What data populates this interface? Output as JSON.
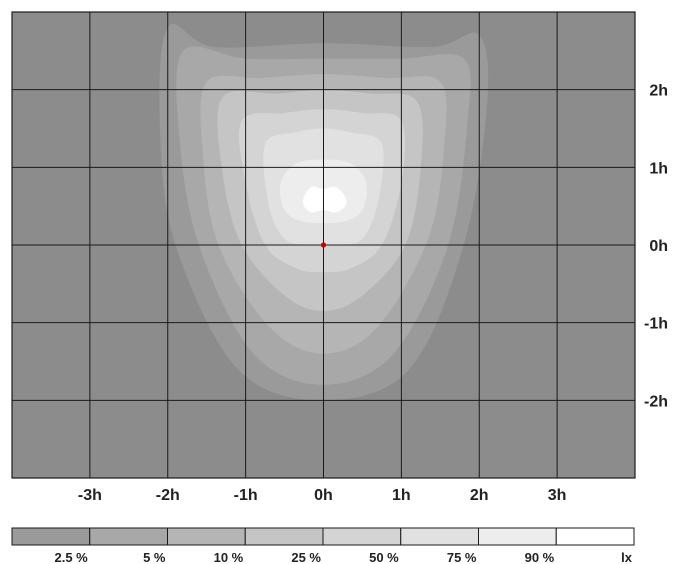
{
  "chart_data": {
    "type": "heatmap",
    "title": "",
    "xlabel": "",
    "ylabel": "",
    "x_ticks": [
      "-3h",
      "-2h",
      "-1h",
      "0h",
      "1h",
      "2h",
      "3h"
    ],
    "y_ticks": [
      "2h",
      "1h",
      "0h",
      "-1h",
      "-2h"
    ],
    "xlim": [
      -4,
      4
    ],
    "ylim": [
      -3,
      3
    ],
    "grid": true,
    "origin_marker": {
      "x": 0,
      "y": 0,
      "color": "#c00000"
    },
    "levels": [
      {
        "label": "2.5 %",
        "color": "#9a9a9a",
        "contour": [
          [
            -2,
            2.8
          ],
          [
            -1.4,
            2.55
          ],
          [
            0,
            2.6
          ],
          [
            1.4,
            2.55
          ],
          [
            2,
            2.7
          ],
          [
            2.1,
            1.8
          ],
          [
            1.8,
            0
          ],
          [
            1.1,
            -1.6
          ],
          [
            0,
            -2
          ],
          [
            -1.1,
            -1.6
          ],
          [
            -1.9,
            0
          ],
          [
            -2.1,
            1.5
          ]
        ]
      },
      {
        "label": "5 %",
        "color": "#a8a8a8",
        "contour": [
          [
            -1.8,
            2.5
          ],
          [
            -1,
            2.4
          ],
          [
            0,
            2.4
          ],
          [
            1,
            2.4
          ],
          [
            1.8,
            2.4
          ],
          [
            1.85,
            1.6
          ],
          [
            1.6,
            0
          ],
          [
            0.9,
            -1.4
          ],
          [
            0,
            -1.8
          ],
          [
            -0.9,
            -1.4
          ],
          [
            -1.6,
            0
          ],
          [
            -1.85,
            1.4
          ]
        ]
      },
      {
        "label": "10 %",
        "color": "#b5b5b5",
        "contour": [
          [
            -1.5,
            2.1
          ],
          [
            -0.8,
            2.15
          ],
          [
            0,
            2.2
          ],
          [
            0.8,
            2.15
          ],
          [
            1.5,
            2.1
          ],
          [
            1.55,
            1.3
          ],
          [
            1.35,
            0.1
          ],
          [
            0.7,
            -1.05
          ],
          [
            0,
            -1.4
          ],
          [
            -0.7,
            -1.05
          ],
          [
            -1.35,
            0
          ],
          [
            -1.55,
            1.2
          ]
        ]
      },
      {
        "label": "25 %",
        "color": "#c5c5c5",
        "contour": [
          [
            -1.3,
            1.9
          ],
          [
            -0.6,
            1.95
          ],
          [
            0,
            2
          ],
          [
            0.6,
            1.95
          ],
          [
            1.2,
            1.85
          ],
          [
            1.25,
            1
          ],
          [
            1.05,
            0
          ],
          [
            0.5,
            -0.65
          ],
          [
            0,
            -0.85
          ],
          [
            -0.5,
            -0.65
          ],
          [
            -1.05,
            0
          ],
          [
            -1.3,
            0.95
          ]
        ]
      },
      {
        "label": "50 %",
        "color": "#d4d4d4",
        "contour": [
          [
            -1.05,
            1.6
          ],
          [
            -0.5,
            1.7
          ],
          [
            0,
            1.75
          ],
          [
            0.5,
            1.7
          ],
          [
            1,
            1.6
          ],
          [
            1,
            0.8
          ],
          [
            0.75,
            0
          ],
          [
            0.35,
            -0.3
          ],
          [
            0,
            -0.35
          ],
          [
            -0.35,
            -0.3
          ],
          [
            -0.75,
            0
          ],
          [
            -1,
            0.8
          ]
        ]
      },
      {
        "label": "75 %",
        "color": "#e1e1e1",
        "contour": [
          [
            -0.75,
            1.3
          ],
          [
            -0.35,
            1.45
          ],
          [
            0,
            1.5
          ],
          [
            0.35,
            1.45
          ],
          [
            0.75,
            1.3
          ],
          [
            0.7,
            0.55
          ],
          [
            0.5,
            0.08
          ],
          [
            0.2,
            0.0
          ],
          [
            -0.2,
            0.0
          ],
          [
            -0.5,
            0.08
          ],
          [
            -0.7,
            0.5
          ]
        ]
      },
      {
        "label": "90 %",
        "color": "#ededed",
        "contour": [
          [
            -0.55,
            0.8
          ],
          [
            -0.35,
            1.05
          ],
          [
            0,
            1.1
          ],
          [
            0.35,
            1.05
          ],
          [
            0.55,
            0.8
          ],
          [
            0.5,
            0.45
          ],
          [
            0.25,
            0.3
          ],
          [
            -0.25,
            0.3
          ],
          [
            -0.5,
            0.45
          ]
        ]
      },
      {
        "label": "lx",
        "color": "#ffffff",
        "contour": [
          [
            -0.25,
            0.62
          ],
          [
            -0.15,
            0.75
          ],
          [
            0,
            0.72
          ],
          [
            0.15,
            0.75
          ],
          [
            0.28,
            0.62
          ],
          [
            0.28,
            0.5
          ],
          [
            0.15,
            0.42
          ],
          [
            0,
            0.45
          ],
          [
            -0.15,
            0.42
          ],
          [
            -0.25,
            0.5
          ]
        ]
      }
    ],
    "background_color": "#8c8c8c",
    "grid_color": "#1a1a1a",
    "legend_position": "bottom"
  }
}
